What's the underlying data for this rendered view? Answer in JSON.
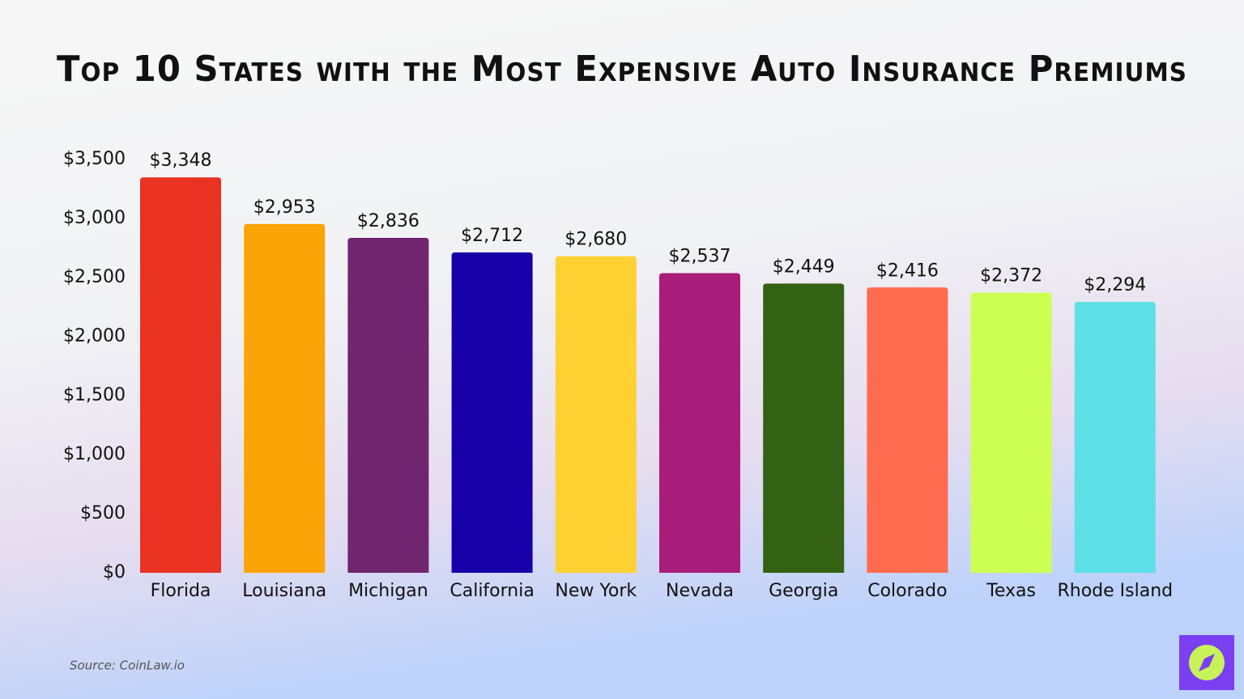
{
  "chart_data": {
    "type": "bar",
    "title": "Top 10 States with the Most Expensive Auto Insurance Premiums",
    "categories": [
      "Florida",
      "Louisiana",
      "Michigan",
      "California",
      "New York",
      "Nevada",
      "Georgia",
      "Colorado",
      "Texas",
      "Rhode Island"
    ],
    "values": [
      3348,
      2953,
      2836,
      2712,
      2680,
      2537,
      2449,
      2416,
      2372,
      2294
    ],
    "value_labels": [
      "$3,348",
      "$2,953",
      "$2,836",
      "$2,712",
      "$2,680",
      "$2,537",
      "$2,449",
      "$2,416",
      "$2,372",
      "$2,294"
    ],
    "colors": [
      "#e93222",
      "#fba407",
      "#70266e",
      "#1700a8",
      "#fed132",
      "#a91d7a",
      "#346214",
      "#ff6b4f",
      "#ccff52",
      "#5de0e6"
    ],
    "ylim": [
      0,
      3500
    ],
    "yticks": [
      {
        "value": 0,
        "label": "$0"
      },
      {
        "value": 500,
        "label": "$500"
      },
      {
        "value": 1000,
        "label": "$1,000"
      },
      {
        "value": 1500,
        "label": "$1,500"
      },
      {
        "value": 2000,
        "label": "$2,000"
      },
      {
        "value": 2500,
        "label": "$2,500"
      },
      {
        "value": 3000,
        "label": "$3,000"
      },
      {
        "value": 3500,
        "label": "$3,500"
      }
    ],
    "grid": false,
    "source": "Source: CoinLaw.io"
  }
}
